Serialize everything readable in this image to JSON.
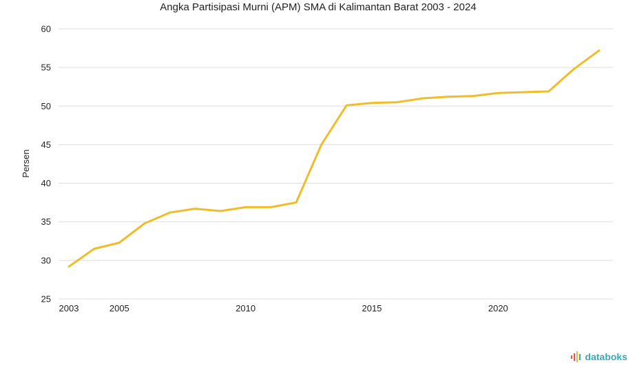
{
  "chart_data": {
    "type": "line",
    "title": "Angka Partisipasi Murni (APM) SMA di Kalimantan Barat 2003 - 2024",
    "xlabel": "",
    "ylabel": "Persen",
    "ylim": [
      25,
      60
    ],
    "yticks": [
      25,
      30,
      35,
      40,
      45,
      50,
      55,
      60
    ],
    "xticks": [
      2003,
      2005,
      2010,
      2015,
      2020
    ],
    "xlim": [
      2003,
      2024
    ],
    "grid": true,
    "series": [
      {
        "color": "#f0bc2a",
        "x": [
          2003,
          2004,
          2005,
          2006,
          2007,
          2008,
          2009,
          2010,
          2011,
          2012,
          2013,
          2014,
          2015,
          2016,
          2017,
          2018,
          2019,
          2020,
          2021,
          2022,
          2023,
          2024
        ],
        "values": [
          29.2,
          31.5,
          32.3,
          34.8,
          36.2,
          36.7,
          36.4,
          36.9,
          36.9,
          37.5,
          45.0,
          50.1,
          50.4,
          50.5,
          51.0,
          51.2,
          51.3,
          51.7,
          51.8,
          51.9,
          54.8,
          57.2
        ]
      }
    ]
  },
  "brand": {
    "name": "databoks",
    "color": "#3aa9b5",
    "accent": "#e8534a"
  }
}
